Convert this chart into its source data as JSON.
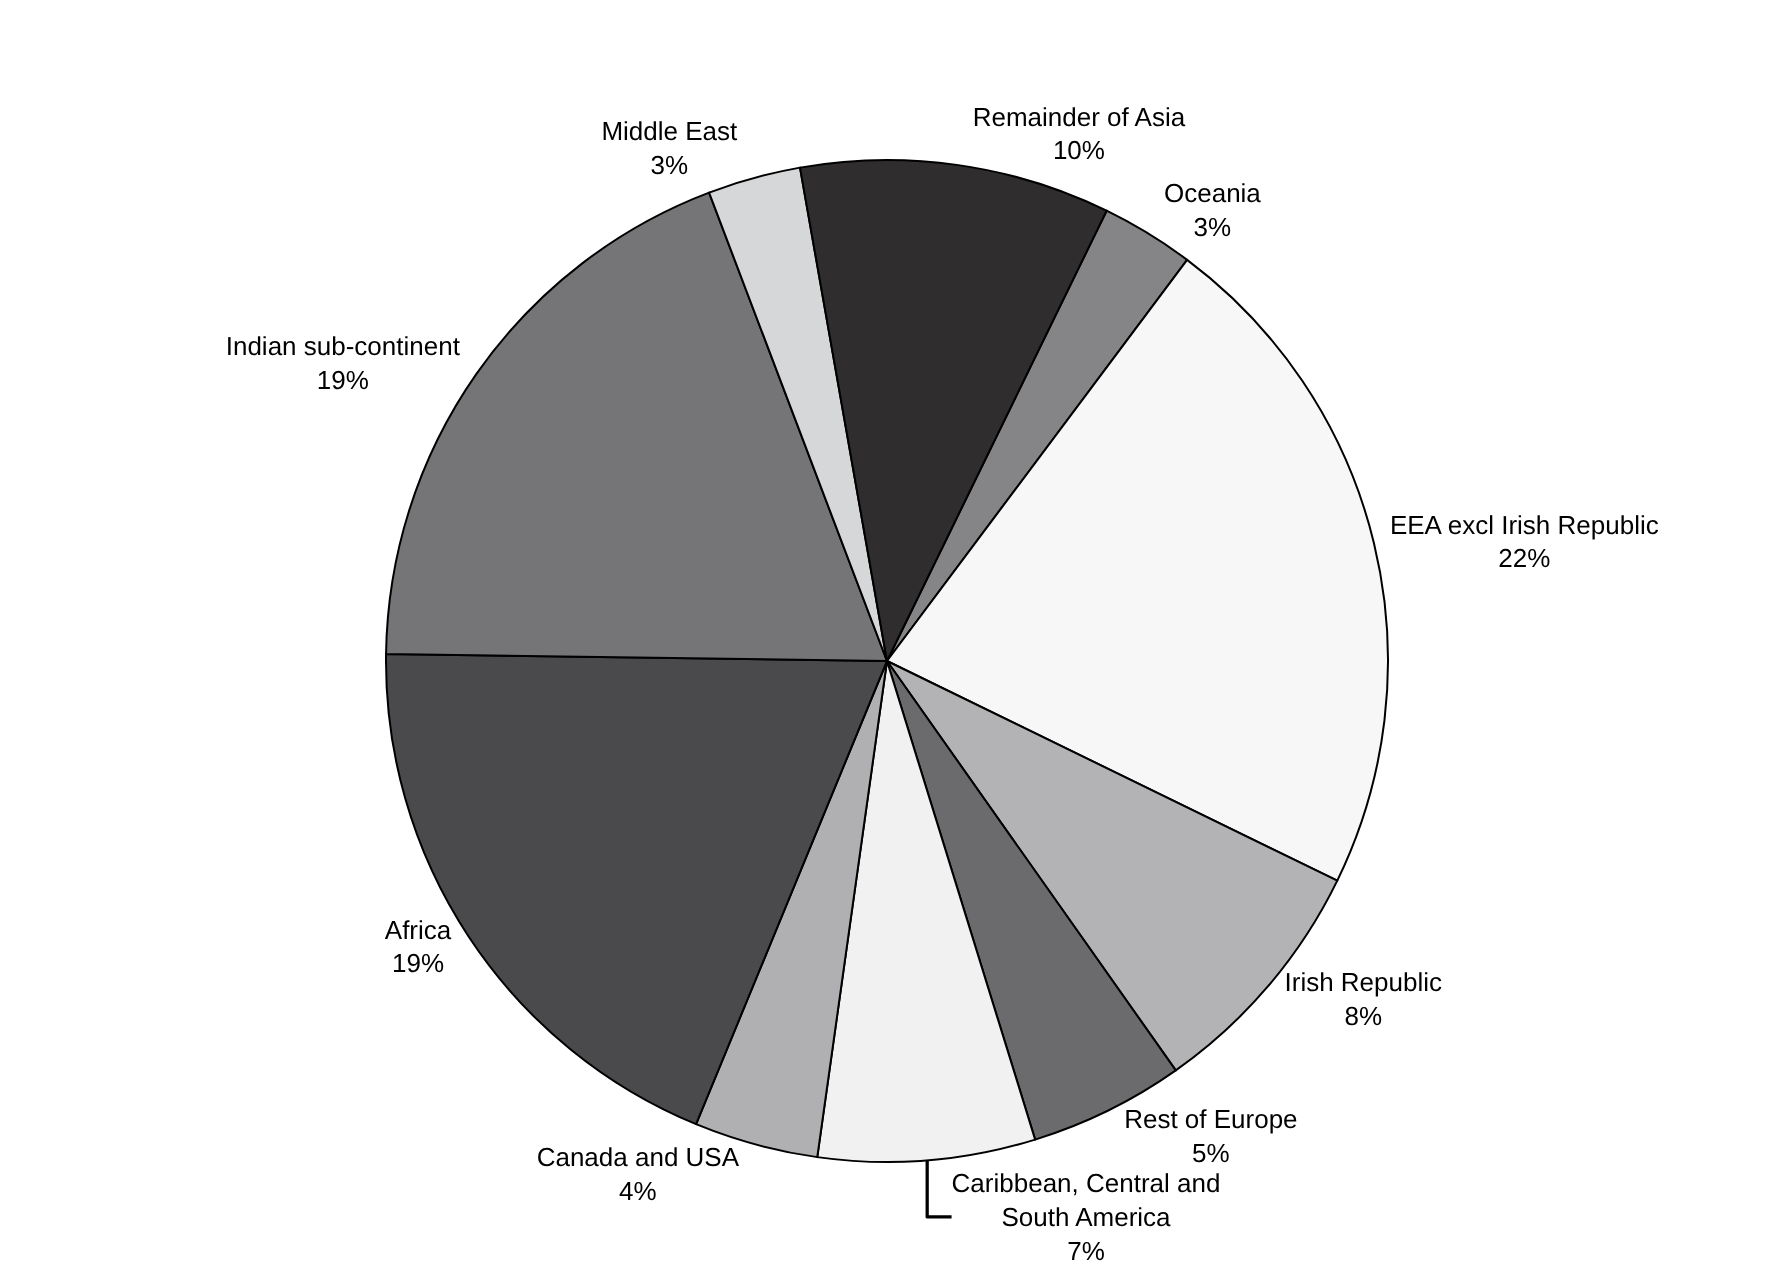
{
  "chart_data": {
    "type": "pie",
    "categories": [
      "Oceania",
      "EEA excl Irish Republic",
      "Irish Republic",
      "Rest of Europe",
      "Caribbean, Central and South America",
      "Canada and USA",
      "Africa",
      "Indian sub-continent",
      "Middle East",
      "Remainder of Asia"
    ],
    "values": [
      3,
      22,
      8,
      5,
      7,
      4,
      19,
      19,
      3,
      10
    ],
    "colors": [
      "#858587",
      "#f7f7f7",
      "#b3b3b5",
      "#6b6b6d",
      "#f0f1f0",
      "#b0b0b2",
      "#4a4a4c",
      "#757577",
      "#d6d7d8",
      "#2f2d2e"
    ],
    "value_labels": [
      "3%",
      "22%",
      "8%",
      "5%",
      "7%",
      "4%",
      "19%",
      "19%",
      "3%",
      "10%"
    ],
    "legend": false
  }
}
